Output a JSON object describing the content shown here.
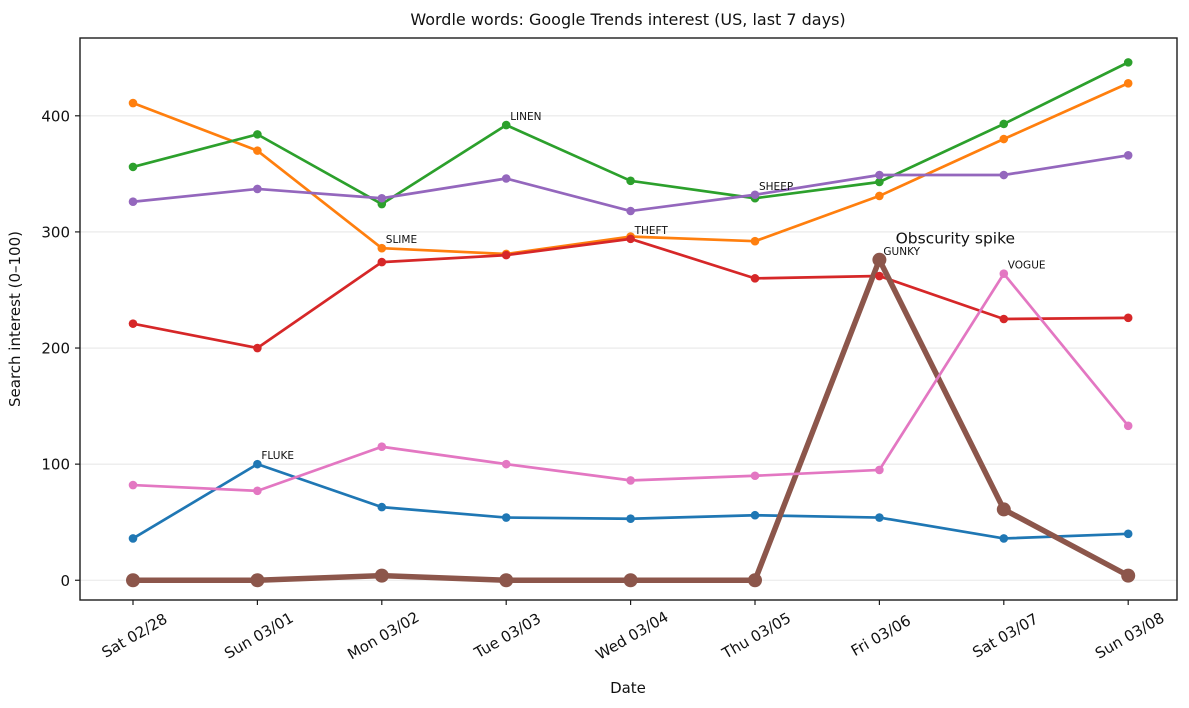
{
  "chart_data": {
    "type": "line",
    "title": "Wordle words: Google Trends interest (US, last 7 days)",
    "xlabel": "Date",
    "ylabel": "Search interest (0–100)",
    "categories": [
      "Sat 02/28",
      "Sun 03/01",
      "Mon 03/02",
      "Tue 03/03",
      "Wed 03/04",
      "Thu 03/05",
      "Fri 03/06",
      "Sat 03/07",
      "Sun 03/08"
    ],
    "ytick_values": [
      0,
      100,
      200,
      300,
      400
    ],
    "ylim": [
      -17,
      467
    ],
    "grid": "horizontal-only",
    "legend_position": "none",
    "grid_color": "#e8e8e8",
    "spine_color": "#1c1c1c",
    "series": [
      {
        "name": "FLUKE",
        "color": "#1f77b4",
        "linewidth": 2.7,
        "marker_radius": 4.3,
        "values": [
          36,
          100,
          63,
          54,
          53,
          56,
          54,
          36,
          40
        ]
      },
      {
        "name": "SLIME",
        "color": "#ff7f0e",
        "linewidth": 2.7,
        "marker_radius": 4.3,
        "values": [
          411,
          370,
          286,
          281,
          296,
          292,
          331,
          380,
          428
        ]
      },
      {
        "name": "LINEN",
        "color": "#2ca02c",
        "linewidth": 2.7,
        "marker_radius": 4.3,
        "values": [
          356,
          384,
          324,
          392,
          344,
          329,
          343,
          393,
          446
        ]
      },
      {
        "name": "THEFT",
        "color": "#d62728",
        "linewidth": 2.7,
        "marker_radius": 4.3,
        "values": [
          221,
          200,
          274,
          280,
          294,
          260,
          262,
          225,
          226
        ]
      },
      {
        "name": "SHEEP",
        "color": "#9467bd",
        "linewidth": 2.7,
        "marker_radius": 4.3,
        "values": [
          326,
          337,
          329,
          346,
          318,
          332,
          349,
          349,
          366
        ]
      },
      {
        "name": "GUNKY",
        "color": "#8c564b",
        "linewidth": 5.5,
        "marker_radius": 7.0,
        "values": [
          0,
          0,
          4,
          0,
          0,
          0,
          276,
          61,
          4
        ]
      },
      {
        "name": "VOGUE",
        "color": "#e377c2",
        "linewidth": 2.7,
        "marker_radius": 4.3,
        "values": [
          82,
          77,
          115,
          100,
          86,
          90,
          95,
          264,
          133
        ]
      }
    ],
    "word_annotations": [
      {
        "text": "FLUKE",
        "series": "FLUKE",
        "day_index": 1
      },
      {
        "text": "SLIME",
        "series": "SLIME",
        "day_index": 2
      },
      {
        "text": "LINEN",
        "series": "LINEN",
        "day_index": 3
      },
      {
        "text": "THEFT",
        "series": "THEFT",
        "day_index": 4
      },
      {
        "text": "SHEEP",
        "series": "SHEEP",
        "day_index": 5
      },
      {
        "text": "GUNKY",
        "series": "GUNKY",
        "day_index": 6
      },
      {
        "text": "VOGUE",
        "series": "VOGUE",
        "day_index": 7
      }
    ],
    "extra_annotations": [
      {
        "text": "Obscurity spike",
        "x": 6.13,
        "y": 290
      }
    ]
  }
}
